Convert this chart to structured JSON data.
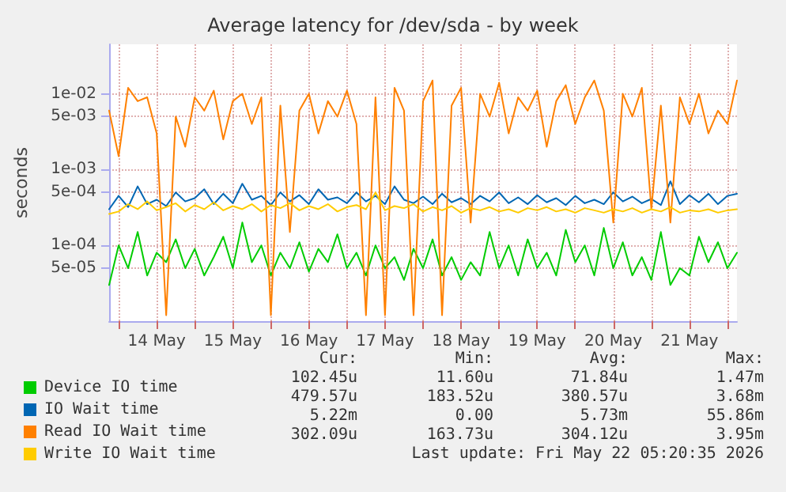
{
  "chart_data": {
    "type": "line",
    "title": "Average latency for /dev/sda - by week",
    "ylabel": "seconds",
    "x": [
      "2026-05-13T21:00",
      "2026-05-14T00:00",
      "2026-05-14T03:00",
      "2026-05-14T06:00",
      "2026-05-14T09:00",
      "2026-05-14T12:00",
      "2026-05-14T15:00",
      "2026-05-14T18:00",
      "2026-05-14T21:00",
      "2026-05-15T00:00",
      "2026-05-15T03:00",
      "2026-05-15T06:00",
      "2026-05-15T09:00",
      "2026-05-15T12:00",
      "2026-05-15T15:00",
      "2026-05-15T18:00",
      "2026-05-15T21:00",
      "2026-05-16T00:00",
      "2026-05-16T03:00",
      "2026-05-16T06:00",
      "2026-05-16T09:00",
      "2026-05-16T12:00",
      "2026-05-16T15:00",
      "2026-05-16T18:00",
      "2026-05-16T21:00",
      "2026-05-17T00:00",
      "2026-05-17T03:00",
      "2026-05-17T06:00",
      "2026-05-17T09:00",
      "2026-05-17T12:00",
      "2026-05-17T15:00",
      "2026-05-17T18:00",
      "2026-05-17T21:00",
      "2026-05-18T00:00",
      "2026-05-18T03:00",
      "2026-05-18T06:00",
      "2026-05-18T09:00",
      "2026-05-18T12:00",
      "2026-05-18T15:00",
      "2026-05-18T18:00",
      "2026-05-18T21:00",
      "2026-05-19T00:00",
      "2026-05-19T03:00",
      "2026-05-19T06:00",
      "2026-05-19T09:00",
      "2026-05-19T12:00",
      "2026-05-19T15:00",
      "2026-05-19T18:00",
      "2026-05-19T21:00",
      "2026-05-20T00:00",
      "2026-05-20T03:00",
      "2026-05-20T06:00",
      "2026-05-20T09:00",
      "2026-05-20T12:00",
      "2026-05-20T15:00",
      "2026-05-20T18:00",
      "2026-05-20T21:00",
      "2026-05-21T00:00",
      "2026-05-21T03:00",
      "2026-05-21T06:00",
      "2026-05-21T09:00",
      "2026-05-21T12:00",
      "2026-05-21T15:00",
      "2026-05-21T18:00",
      "2026-05-21T21:00",
      "2026-05-22T00:00",
      "2026-05-22T03:00"
    ],
    "series": [
      {
        "name": "Device IO time",
        "color": "#00cc00",
        "values": [
          3e-05,
          0.0001,
          5e-05,
          0.00015,
          4e-05,
          8e-05,
          6e-05,
          0.00012,
          5e-05,
          9e-05,
          4e-05,
          7e-05,
          0.00013,
          5e-05,
          0.0002,
          6e-05,
          0.0001,
          4e-05,
          8e-05,
          5e-05,
          0.00011,
          4.5e-05,
          9e-05,
          6e-05,
          0.00014,
          5e-05,
          8e-05,
          4e-05,
          0.0001,
          5e-05,
          7e-05,
          3.5e-05,
          9e-05,
          5e-05,
          0.00012,
          4e-05,
          7e-05,
          3.5e-05,
          6e-05,
          4e-05,
          0.00015,
          5e-05,
          0.0001,
          4e-05,
          0.00012,
          5e-05,
          8e-05,
          4e-05,
          0.00016,
          6e-05,
          0.0001,
          4e-05,
          0.00017,
          5e-05,
          0.00011,
          4e-05,
          7e-05,
          3.5e-05,
          0.00015,
          3e-05,
          5e-05,
          4e-05,
          0.00013,
          6e-05,
          0.00011,
          5e-05,
          8e-05
        ]
      },
      {
        "name": "IO Wait time",
        "color": "#0066b3",
        "values": [
          0.0003,
          0.00045,
          0.00032,
          0.0006,
          0.00035,
          0.0004,
          0.00033,
          0.0005,
          0.00038,
          0.00042,
          0.00055,
          0.00035,
          0.00048,
          0.00036,
          0.00065,
          0.0004,
          0.00045,
          0.00034,
          0.0005,
          0.00038,
          0.00046,
          0.00035,
          0.00055,
          0.0004,
          0.00043,
          0.00036,
          0.0005,
          0.00038,
          0.00045,
          0.00035,
          0.0006,
          0.0004,
          0.00036,
          0.00044,
          0.00035,
          0.00048,
          0.00037,
          0.00042,
          0.00035,
          0.00045,
          0.00038,
          0.0005,
          0.00036,
          0.00043,
          0.00035,
          0.00046,
          0.00037,
          0.00042,
          0.00034,
          0.00045,
          0.00036,
          0.0004,
          0.00035,
          0.0005,
          0.00038,
          0.00044,
          0.00036,
          0.00041,
          0.00034,
          0.0007,
          0.00035,
          0.00046,
          0.00037,
          0.00048,
          0.00035,
          0.00045,
          0.00048
        ]
      },
      {
        "name": "Read IO Wait time",
        "color": "#ff8000",
        "values": [
          0.006,
          0.0015,
          0.012,
          0.008,
          0.009,
          0.003,
          1.2e-05,
          0.005,
          0.002,
          0.009,
          0.006,
          0.011,
          0.0025,
          0.008,
          0.01,
          0.004,
          0.009,
          1.2e-05,
          0.007,
          0.00015,
          0.006,
          0.01,
          0.003,
          0.008,
          0.005,
          0.011,
          0.004,
          1.2e-05,
          0.009,
          1.2e-05,
          0.012,
          0.006,
          1.2e-05,
          0.008,
          0.015,
          1.2e-05,
          0.007,
          0.012,
          0.0002,
          0.01,
          0.005,
          0.014,
          0.003,
          0.009,
          0.006,
          0.011,
          0.002,
          0.008,
          0.013,
          0.004,
          0.009,
          0.015,
          0.006,
          0.0002,
          0.01,
          0.005,
          0.012,
          0.0003,
          0.007,
          0.0002,
          0.009,
          0.004,
          0.01,
          0.003,
          0.006,
          0.004,
          0.015
        ]
      },
      {
        "name": "Write IO Wait time",
        "color": "#ffcc00",
        "values": [
          0.00026,
          0.00028,
          0.00035,
          0.0003,
          0.00038,
          0.00029,
          0.00032,
          0.00036,
          0.00028,
          0.00034,
          0.0003,
          0.00037,
          0.00029,
          0.00033,
          0.0003,
          0.00035,
          0.00028,
          0.00034,
          0.00031,
          0.00036,
          0.00029,
          0.00033,
          0.0003,
          0.00035,
          0.00028,
          0.00032,
          0.00034,
          0.0003,
          0.0005,
          0.00029,
          0.00033,
          0.00031,
          0.00035,
          0.00028,
          0.00032,
          0.00029,
          0.00033,
          0.00027,
          0.00031,
          0.00029,
          0.00032,
          0.00028,
          0.0003,
          0.00027,
          0.00031,
          0.00029,
          0.00032,
          0.00028,
          0.0003,
          0.00027,
          0.00031,
          0.00029,
          0.00027,
          0.0003,
          0.00028,
          0.00031,
          0.00027,
          0.0003,
          0.00028,
          0.00032,
          0.00027,
          0.00029,
          0.00028,
          0.0003,
          0.00027,
          0.00029,
          0.0003
        ]
      }
    ],
    "xlim": [
      "2026-05-13T21:00",
      "2026-05-22T03:00"
    ],
    "xticks": [
      {
        "value": "2026-05-14T00:00",
        "label": null
      },
      {
        "value": "2026-05-14T12:00",
        "label": "14 May"
      },
      {
        "value": "2026-05-15T00:00",
        "label": null
      },
      {
        "value": "2026-05-15T12:00",
        "label": "15 May"
      },
      {
        "value": "2026-05-16T00:00",
        "label": null
      },
      {
        "value": "2026-05-16T12:00",
        "label": "16 May"
      },
      {
        "value": "2026-05-17T00:00",
        "label": null
      },
      {
        "value": "2026-05-17T12:00",
        "label": "17 May"
      },
      {
        "value": "2026-05-18T00:00",
        "label": null
      },
      {
        "value": "2026-05-18T12:00",
        "label": "18 May"
      },
      {
        "value": "2026-05-19T00:00",
        "label": null
      },
      {
        "value": "2026-05-19T12:00",
        "label": "19 May"
      },
      {
        "value": "2026-05-20T00:00",
        "label": null
      },
      {
        "value": "2026-05-20T12:00",
        "label": "20 May"
      },
      {
        "value": "2026-05-21T00:00",
        "label": null
      },
      {
        "value": "2026-05-21T12:00",
        "label": "21 May"
      },
      {
        "value": "2026-05-22T00:00",
        "label": null
      }
    ],
    "ylim": [
      1e-05,
      0.045
    ],
    "yticks": [
      {
        "value": 5e-05,
        "label": "5e-05"
      },
      {
        "value": 0.0001,
        "label": "1e-04"
      },
      {
        "value": 0.0005,
        "label": "5e-04"
      },
      {
        "value": 0.001,
        "label": "1e-03"
      },
      {
        "value": 0.005,
        "label": "5e-03"
      },
      {
        "value": 0.01,
        "label": "1e-02"
      }
    ],
    "log": "y",
    "grid": true,
    "legend": "bottom left",
    "marker": "none",
    "line_style": "solid",
    "annotations": [
      "Cur:",
      "Min:",
      "Avg:",
      "Max:",
      "102.45u",
      "11.60u",
      "71.84u",
      "1.47m",
      "479.57u",
      "183.52u",
      "380.57u",
      "3.68m",
      "5.22m",
      "0.00",
      "5.73m",
      "55.86m",
      "302.09u",
      "163.73u",
      "304.12u",
      "3.95m",
      "Last update: Fri May 22 05:20:35 2026"
    ]
  }
}
